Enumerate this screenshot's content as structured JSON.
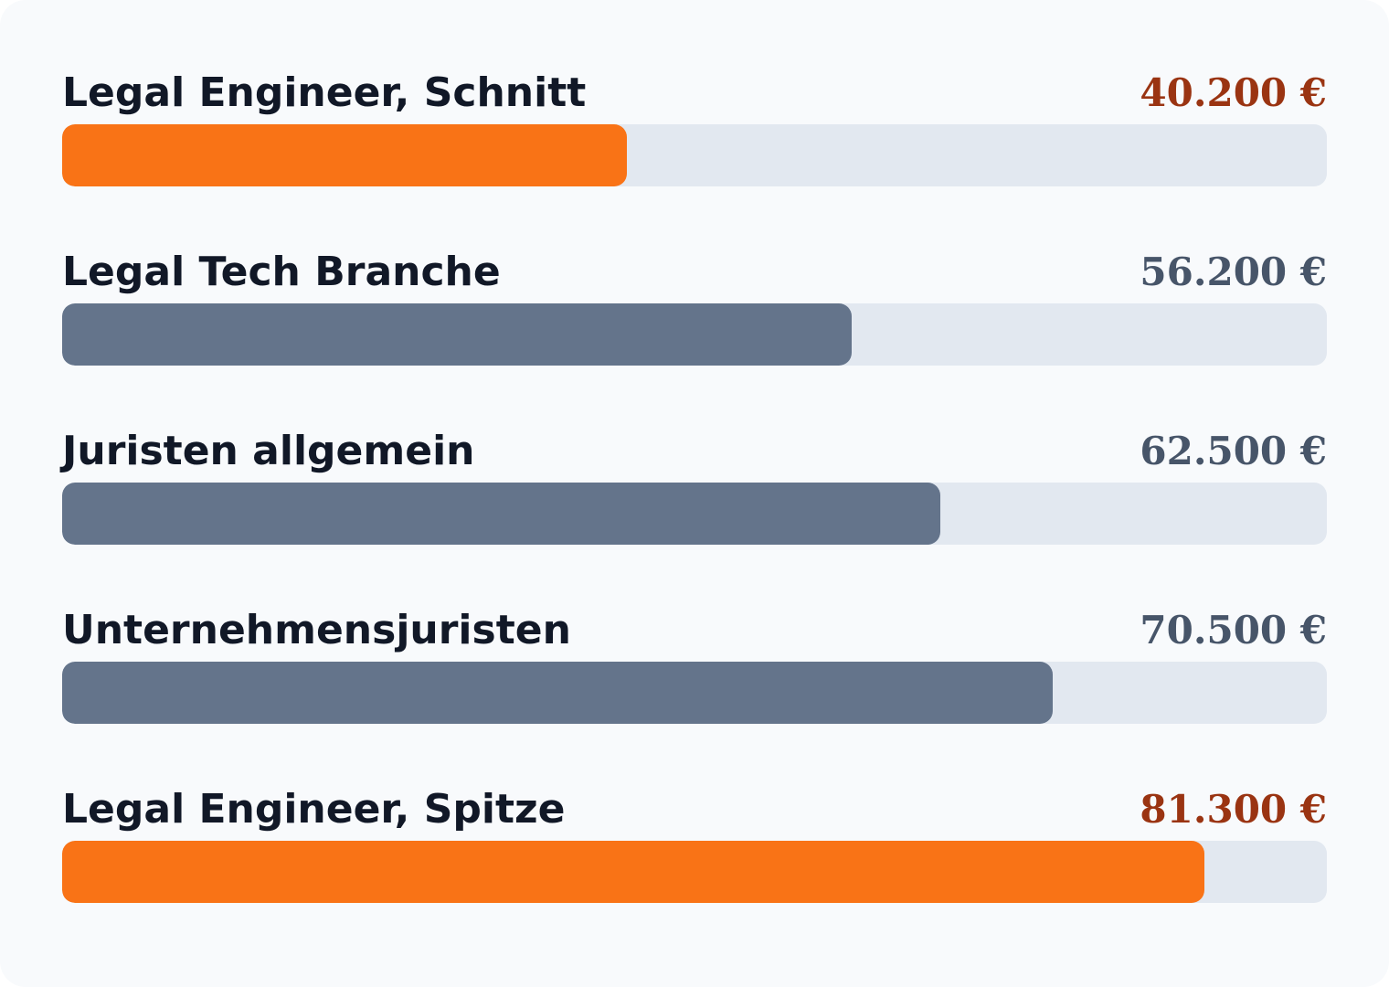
{
  "chart_data": {
    "type": "bar",
    "orientation": "horizontal",
    "categories": [
      "Legal Engineer, Schnitt",
      "Legal Tech Branche",
      "Juristen allgemein",
      "Unternehmensjuristen",
      "Legal Engineer, Spitze"
    ],
    "values": [
      40200,
      56200,
      62500,
      70500,
      81300
    ],
    "value_labels": [
      "40.200 €",
      "56.200 €",
      "62.500 €",
      "70.500 €",
      "81.300 €"
    ],
    "xlim": [
      0,
      90000
    ],
    "grid": false,
    "highlighted": [
      true,
      false,
      false,
      false,
      true
    ]
  },
  "colors": {
    "highlight_bar": "#f97316",
    "default_bar": "#64748b",
    "highlight_value": "#9a3412",
    "default_value": "#475569",
    "track": "#e2e8f0"
  }
}
